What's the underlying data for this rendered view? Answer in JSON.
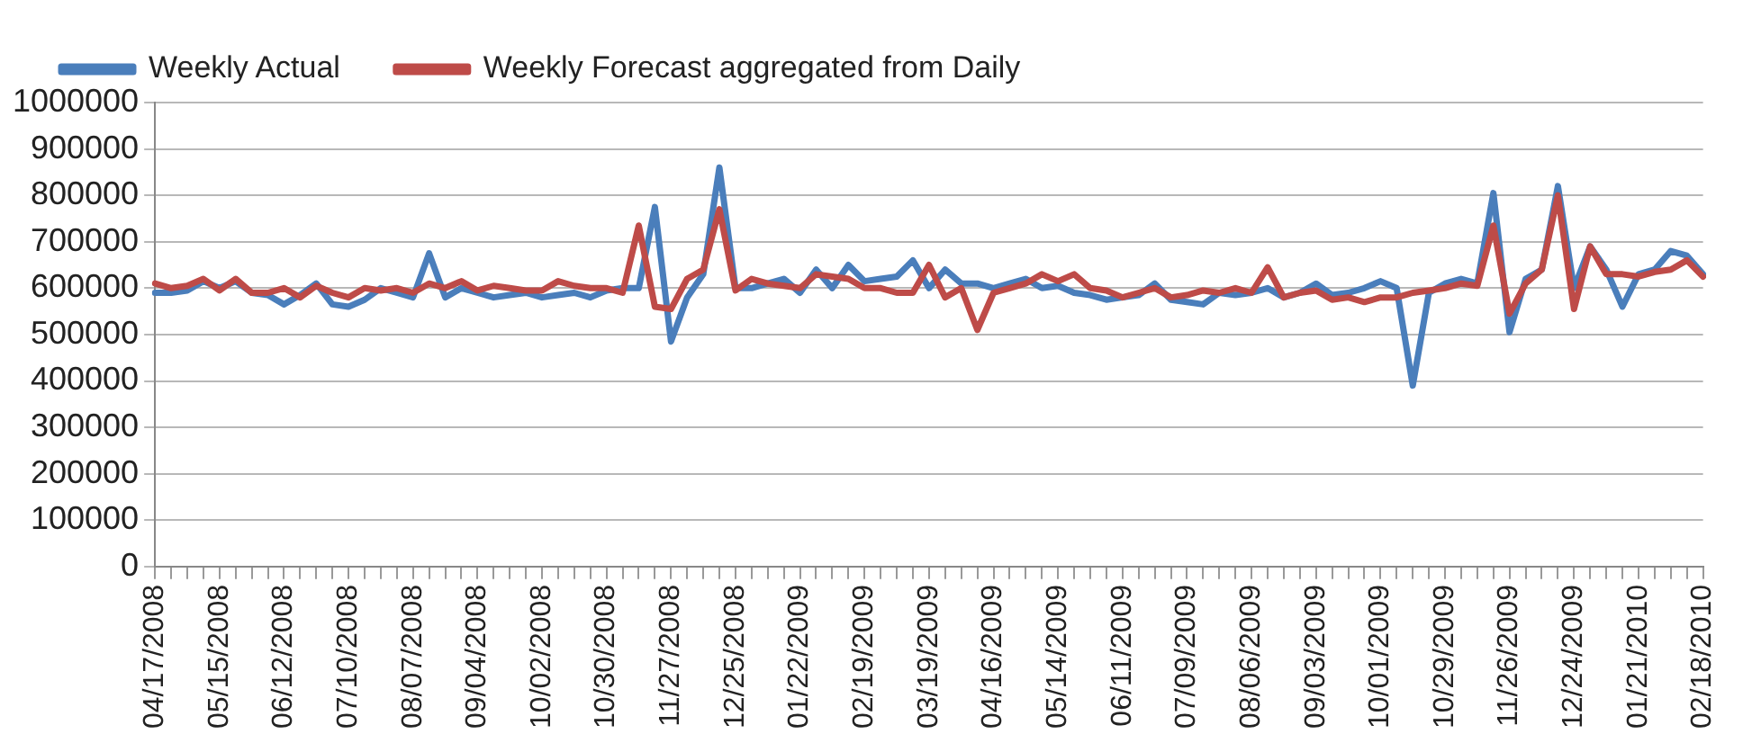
{
  "chart_data": {
    "type": "line",
    "categories": [
      "04/17/2008",
      null,
      null,
      null,
      "05/15/2008",
      null,
      null,
      null,
      "06/12/2008",
      null,
      null,
      null,
      "07/10/2008",
      null,
      null,
      null,
      "08/07/2008",
      null,
      null,
      null,
      "09/04/2008",
      null,
      null,
      null,
      "10/02/2008",
      null,
      null,
      null,
      "10/30/2008",
      null,
      null,
      null,
      "11/27/2008",
      null,
      null,
      null,
      "12/25/2008",
      null,
      null,
      null,
      "01/22/2009",
      null,
      null,
      null,
      "02/19/2009",
      null,
      null,
      null,
      "03/19/2009",
      null,
      null,
      null,
      "04/16/2009",
      null,
      null,
      null,
      "05/14/2009",
      null,
      null,
      null,
      "06/11/2009",
      null,
      null,
      null,
      "07/09/2009",
      null,
      null,
      null,
      "08/06/2009",
      null,
      null,
      null,
      "09/03/2009",
      null,
      null,
      null,
      "10/01/2009",
      null,
      null,
      null,
      "10/29/2009",
      null,
      null,
      null,
      "11/26/2009",
      null,
      null,
      null,
      "12/24/2009",
      null,
      null,
      null,
      "01/21/2010",
      null,
      null,
      null,
      "02/18/2010"
    ],
    "series": [
      {
        "name": "Weekly Actual",
        "color": "#4a7ebb",
        "values": [
          590000,
          590000,
          595000,
          615000,
          600000,
          615000,
          590000,
          585000,
          565000,
          585000,
          610000,
          565000,
          560000,
          575000,
          600000,
          590000,
          580000,
          675000,
          580000,
          600000,
          590000,
          580000,
          585000,
          590000,
          580000,
          585000,
          590000,
          580000,
          595000,
          600000,
          600000,
          775000,
          485000,
          580000,
          630000,
          860000,
          600000,
          600000,
          610000,
          620000,
          590000,
          640000,
          600000,
          650000,
          615000,
          620000,
          625000,
          660000,
          600000,
          640000,
          610000,
          610000,
          600000,
          610000,
          620000,
          600000,
          605000,
          590000,
          585000,
          575000,
          580000,
          585000,
          610000,
          575000,
          570000,
          565000,
          590000,
          585000,
          590000,
          600000,
          580000,
          590000,
          610000,
          585000,
          590000,
          600000,
          615000,
          600000,
          390000,
          590000,
          610000,
          620000,
          610000,
          805000,
          505000,
          620000,
          640000,
          820000,
          600000,
          690000,
          640000,
          560000,
          630000,
          640000,
          680000,
          670000,
          630000
        ]
      },
      {
        "name": "Weekly Forecast aggregated from Daily",
        "color": "#be4b48",
        "values": [
          610000,
          600000,
          605000,
          620000,
          595000,
          620000,
          590000,
          590000,
          600000,
          580000,
          605000,
          590000,
          580000,
          600000,
          595000,
          600000,
          590000,
          610000,
          600000,
          615000,
          595000,
          605000,
          600000,
          595000,
          595000,
          615000,
          605000,
          600000,
          600000,
          590000,
          735000,
          560000,
          555000,
          620000,
          640000,
          770000,
          595000,
          620000,
          610000,
          605000,
          600000,
          630000,
          625000,
          620000,
          600000,
          600000,
          590000,
          590000,
          650000,
          580000,
          600000,
          510000,
          590000,
          600000,
          610000,
          630000,
          615000,
          630000,
          600000,
          595000,
          580000,
          590000,
          600000,
          580000,
          585000,
          595000,
          590000,
          600000,
          590000,
          645000,
          580000,
          590000,
          595000,
          575000,
          580000,
          570000,
          580000,
          580000,
          590000,
          595000,
          600000,
          610000,
          605000,
          735000,
          545000,
          610000,
          640000,
          800000,
          555000,
          690000,
          630000,
          630000,
          625000,
          635000,
          640000,
          660000,
          625000
        ]
      }
    ],
    "ylim": [
      0,
      1000000
    ],
    "yticks": [
      0,
      100000,
      200000,
      300000,
      400000,
      500000,
      600000,
      700000,
      800000,
      900000,
      1000000
    ],
    "grid": "y",
    "legend": "top",
    "marker": "none",
    "line_style": "solid"
  }
}
